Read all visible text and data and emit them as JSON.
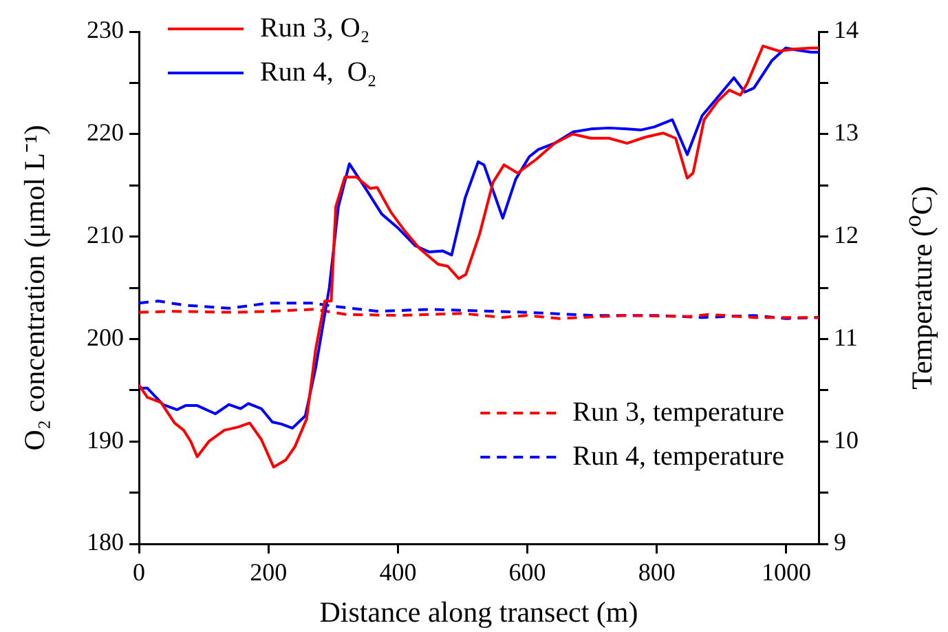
{
  "chart_data": {
    "type": "line",
    "xlabel": "Distance along transect  (m)",
    "ylabel": "O₂ concentration  (μmol L⁻¹)",
    "y2label": "Temperature  ($^{o}$C)",
    "xlim": [
      0,
      1050
    ],
    "xticks": [
      0,
      200,
      400,
      600,
      800,
      1000
    ],
    "ylim": [
      180,
      230
    ],
    "yticks": [
      180,
      {
        "value": 185,
        "label": null
      },
      190,
      {
        "value": 195,
        "label": null
      },
      200,
      {
        "value": 205,
        "label": null
      },
      210,
      {
        "value": 215,
        "label": null
      },
      220,
      {
        "value": 225,
        "label": null
      },
      230
    ],
    "y2lim": [
      9,
      14
    ],
    "y2ticks": [
      9,
      {
        "value": 9.5,
        "label": null
      },
      10,
      {
        "value": 10.5,
        "label": null
      },
      11,
      {
        "value": 11.5,
        "label": null
      },
      12,
      {
        "value": 12.5,
        "label": null
      },
      13,
      {
        "value": 13.5,
        "label": null
      },
      14
    ],
    "grid": false,
    "legend": "top left",
    "marker": "none",
    "series": [
      {
        "name": "Run 3, O₂",
        "color": "#ff0000",
        "line_style": "solid",
        "x": [
          0,
          13,
          34,
          55,
          69,
          80,
          90,
          108,
          132,
          153,
          171,
          189,
          208,
          227,
          241,
          259,
          273,
          287,
          297,
          304,
          318,
          336,
          357,
          368,
          389,
          410,
          434,
          462,
          477,
          494,
          505,
          526,
          547,
          564,
          585,
          613,
          642,
          670,
          698,
          726,
          754,
          782,
          810,
          829,
          847,
          856,
          873,
          894,
          912,
          929,
          940,
          964,
          989,
          1013,
          1038,
          1050
        ],
        "values": [
          195.5,
          194.3,
          193.8,
          191.8,
          191.1,
          190,
          188.5,
          190,
          191.1,
          191.4,
          191.8,
          190.2,
          187.5,
          188.2,
          189.5,
          192.2,
          199,
          203.7,
          203.7,
          212.9,
          215.8,
          215.8,
          214.7,
          214.8,
          212.4,
          210.6,
          208.8,
          207.3,
          207.1,
          205.9,
          206.3,
          210.2,
          215.3,
          217,
          216.2,
          217.5,
          219.1,
          220,
          219.6,
          219.6,
          219.1,
          219.7,
          220.1,
          219.6,
          215.7,
          216.2,
          221.4,
          223.2,
          224.3,
          223.8,
          225,
          228.6,
          228.1,
          228.3,
          228.4,
          228.4
        ]
      },
      {
        "name": "Run 4,  O₂",
        "color": "#0000ff",
        "line_style": "solid",
        "x": [
          0,
          13,
          37,
          59,
          72,
          90,
          118,
          139,
          157,
          169,
          189,
          206,
          220,
          237,
          257,
          273,
          294,
          308,
          325,
          350,
          375,
          399,
          427,
          448,
          469,
          483,
          504,
          524,
          533,
          562,
          582,
          603,
          617,
          642,
          670,
          698,
          726,
          754,
          775,
          796,
          824,
          847,
          870,
          894,
          919,
          936,
          950,
          978,
          999,
          1017,
          1038,
          1050
        ],
        "values": [
          195.2,
          195.2,
          193.6,
          193.1,
          193.5,
          193.5,
          192.7,
          193.6,
          193.2,
          193.7,
          193.2,
          191.9,
          191.7,
          191.3,
          192.5,
          197.2,
          205,
          212.9,
          217.1,
          214.7,
          212.2,
          210.9,
          209.1,
          208.5,
          208.6,
          208.2,
          213.8,
          217.3,
          217,
          211.8,
          215.6,
          217.8,
          218.5,
          219.1,
          220.2,
          220.5,
          220.6,
          220.5,
          220.4,
          220.7,
          221.4,
          218,
          221.8,
          223.6,
          225.5,
          224.1,
          224.5,
          227.2,
          228.4,
          228.2,
          228,
          228
        ]
      },
      {
        "name": "Run 3, temperature",
        "color": "#ff0000",
        "line_style": "dashed",
        "axis": "y2",
        "x": [
          0,
          50,
          150,
          200,
          270,
          320,
          400,
          500,
          560,
          600,
          650,
          750,
          850,
          880,
          950,
          1000,
          1050
        ],
        "values": [
          11.26,
          11.27,
          11.26,
          11.27,
          11.29,
          11.24,
          11.23,
          11.25,
          11.21,
          11.23,
          11.2,
          11.23,
          11.22,
          11.24,
          11.21,
          11.21,
          11.21
        ]
      },
      {
        "name": "Run 4, temperature",
        "color": "#0000ff",
        "line_style": "dashed",
        "axis": "y2",
        "x": [
          0,
          30,
          70,
          140,
          200,
          270,
          300,
          370,
          450,
          550,
          600,
          700,
          800,
          870,
          950,
          1000,
          1050
        ],
        "values": [
          11.35,
          11.37,
          11.33,
          11.3,
          11.35,
          11.35,
          11.32,
          11.27,
          11.29,
          11.27,
          11.26,
          11.23,
          11.23,
          11.21,
          11.23,
          11.2,
          11.21
        ]
      }
    ]
  }
}
